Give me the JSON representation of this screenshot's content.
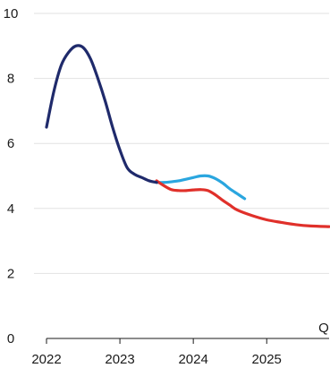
{
  "chart_data": {
    "type": "line",
    "title": "",
    "xlabel": "",
    "ylabel": "",
    "x_unit_label": "Q",
    "xlim": [
      2022.0,
      2025.85
    ],
    "ylim": [
      0,
      10
    ],
    "yticks": [
      0,
      2,
      4,
      6,
      8,
      10
    ],
    "xticks": [
      2022,
      2023,
      2024,
      2025
    ],
    "xtick_labels": [
      "2022",
      "2023",
      "2024",
      "2025"
    ],
    "grid": true,
    "legend": "none",
    "series": [
      {
        "color": "#1f2a6b",
        "x": [
          2022.0,
          2022.1,
          2022.2,
          2022.3,
          2022.4,
          2022.5,
          2022.6,
          2022.7,
          2022.8,
          2022.9,
          2023.0,
          2023.1,
          2023.2,
          2023.3,
          2023.4,
          2023.5
        ],
        "y": [
          6.5,
          7.6,
          8.4,
          8.8,
          9.0,
          8.95,
          8.6,
          8.0,
          7.3,
          6.5,
          5.8,
          5.25,
          5.05,
          4.95,
          4.85,
          4.8
        ]
      },
      {
        "color": "#2aa6df",
        "x": [
          2023.5,
          2023.6,
          2023.7,
          2023.8,
          2023.9,
          2024.0,
          2024.1,
          2024.2,
          2024.3,
          2024.4,
          2024.5,
          2024.6,
          2024.7
        ],
        "y": [
          4.8,
          4.8,
          4.82,
          4.85,
          4.9,
          4.95,
          5.0,
          5.0,
          4.92,
          4.78,
          4.6,
          4.45,
          4.3
        ]
      },
      {
        "color": "#e0302a",
        "x": [
          2023.5,
          2023.6,
          2023.7,
          2023.8,
          2023.9,
          2024.0,
          2024.1,
          2024.2,
          2024.3,
          2024.4,
          2024.5,
          2024.6,
          2024.8,
          2025.0,
          2025.2,
          2025.4,
          2025.6,
          2025.85
        ],
        "y": [
          4.85,
          4.7,
          4.58,
          4.55,
          4.55,
          4.57,
          4.58,
          4.55,
          4.42,
          4.25,
          4.1,
          3.95,
          3.78,
          3.65,
          3.57,
          3.5,
          3.46,
          3.44
        ]
      }
    ]
  }
}
